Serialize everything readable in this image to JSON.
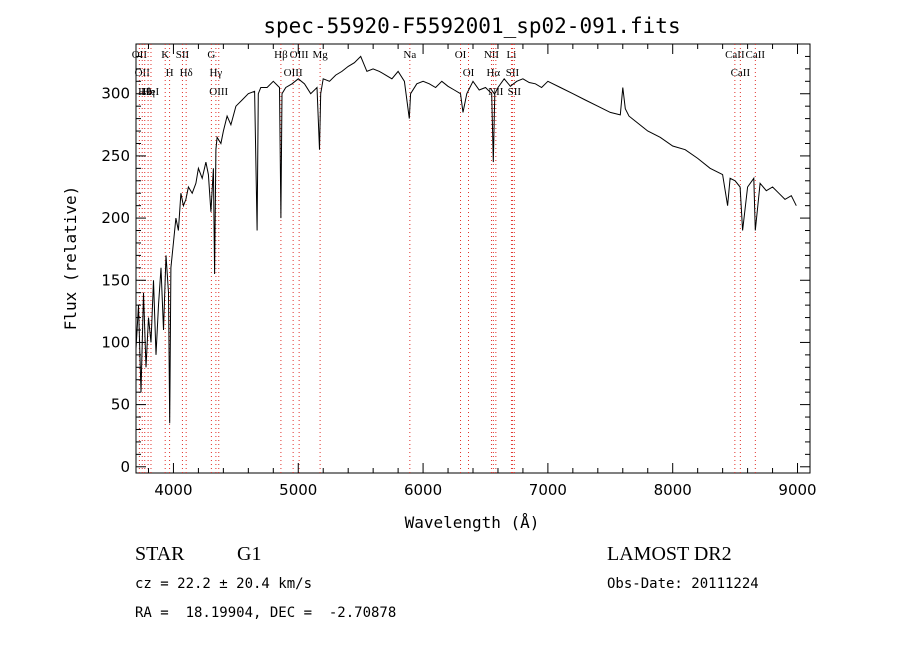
{
  "chart_data": {
    "type": "line",
    "title": "spec-55920-F5592001_sp02-091.fits",
    "xlabel": "Wavelength (Å)",
    "ylabel": "Flux (relative)",
    "xlim": [
      3700,
      9100
    ],
    "ylim": [
      -5,
      340
    ],
    "x_ticks": [
      4000,
      5000,
      6000,
      7000,
      8000,
      9000
    ],
    "y_ticks": [
      0,
      50,
      100,
      150,
      200,
      250,
      300
    ],
    "grid": false,
    "series": [
      {
        "color": "#000000",
        "x": [
          3700,
          3720,
          3740,
          3760,
          3780,
          3800,
          3820,
          3840,
          3860,
          3880,
          3900,
          3920,
          3940,
          3960,
          3970,
          3980,
          4000,
          4020,
          4040,
          4060,
          4080,
          4100,
          4120,
          4150,
          4180,
          4200,
          4230,
          4260,
          4280,
          4300,
          4320,
          4330,
          4340,
          4350,
          4380,
          4400,
          4430,
          4460,
          4500,
          4550,
          4600,
          4650,
          4670,
          4680,
          4700,
          4750,
          4800,
          4850,
          4861,
          4870,
          4900,
          4950,
          5000,
          5050,
          5100,
          5150,
          5170,
          5180,
          5200,
          5250,
          5300,
          5350,
          5400,
          5450,
          5500,
          5550,
          5600,
          5650,
          5700,
          5750,
          5800,
          5850,
          5890,
          5900,
          5950,
          6000,
          6050,
          6100,
          6150,
          6200,
          6250,
          6300,
          6320,
          6350,
          6400,
          6450,
          6500,
          6550,
          6563,
          6575,
          6600,
          6650,
          6700,
          6750,
          6800,
          6850,
          6900,
          6950,
          7000,
          7100,
          7200,
          7300,
          7400,
          7500,
          7580,
          7600,
          7620,
          7650,
          7700,
          7800,
          7900,
          8000,
          8100,
          8200,
          8300,
          8400,
          8440,
          8460,
          8500,
          8540,
          8560,
          8600,
          8650,
          8662,
          8700,
          8750,
          8800,
          8850,
          8900,
          8950,
          8990
        ],
        "y": [
          95,
          130,
          60,
          140,
          80,
          120,
          100,
          150,
          90,
          130,
          160,
          110,
          170,
          140,
          35,
          160,
          180,
          200,
          190,
          220,
          210,
          215,
          225,
          220,
          228,
          240,
          232,
          245,
          235,
          205,
          240,
          155,
          255,
          265,
          260,
          270,
          282,
          275,
          290,
          295,
          300,
          302,
          190,
          300,
          305,
          305,
          310,
          305,
          200,
          300,
          305,
          308,
          312,
          308,
          300,
          305,
          255,
          300,
          312,
          310,
          315,
          318,
          322,
          325,
          330,
          318,
          320,
          318,
          315,
          312,
          318,
          310,
          280,
          300,
          308,
          310,
          308,
          305,
          310,
          306,
          303,
          300,
          285,
          300,
          310,
          303,
          305,
          300,
          245,
          300,
          305,
          312,
          306,
          310,
          312,
          309,
          308,
          305,
          310,
          305,
          300,
          295,
          290,
          285,
          283,
          305,
          288,
          282,
          278,
          270,
          265,
          258,
          255,
          248,
          240,
          235,
          210,
          232,
          230,
          225,
          190,
          225,
          232,
          190,
          228,
          222,
          225,
          220,
          215,
          218,
          210
        ]
      }
    ],
    "spectral_lines": [
      {
        "wavelength": 3727,
        "label": "OII"
      },
      {
        "wavelength": 3750,
        "label": "OII"
      },
      {
        "wavelength": 3770,
        "label": "Hθ"
      },
      {
        "wavelength": 3797,
        "label": "Hη"
      },
      {
        "wavelength": 3820,
        "label": "HeI"
      },
      {
        "wavelength": 3934,
        "label": "K"
      },
      {
        "wavelength": 3969,
        "label": "H"
      },
      {
        "wavelength": 4072,
        "label": "SII"
      },
      {
        "wavelength": 4102,
        "label": "Hδ"
      },
      {
        "wavelength": 4304,
        "label": "G"
      },
      {
        "wavelength": 4340,
        "label": "Hγ"
      },
      {
        "wavelength": 4363,
        "label": "OIII"
      },
      {
        "wavelength": 4861,
        "label": "Hβ"
      },
      {
        "wavelength": 4959,
        "label": "OIII"
      },
      {
        "wavelength": 5007,
        "label": "OIII"
      },
      {
        "wavelength": 5175,
        "label": "Mg"
      },
      {
        "wavelength": 5894,
        "label": "Na"
      },
      {
        "wavelength": 6300,
        "label": "OI"
      },
      {
        "wavelength": 6364,
        "label": "OI"
      },
      {
        "wavelength": 6548,
        "label": "NII"
      },
      {
        "wavelength": 6563,
        "label": "Hα"
      },
      {
        "wavelength": 6583,
        "label": "NII"
      },
      {
        "wavelength": 6708,
        "label": "Li"
      },
      {
        "wavelength": 6716,
        "label": "SII"
      },
      {
        "wavelength": 6731,
        "label": "SII"
      },
      {
        "wavelength": 8498,
        "label": "CaII"
      },
      {
        "wavelength": 8542,
        "label": "CaII"
      },
      {
        "wavelength": 8662,
        "label": "CaII"
      }
    ]
  },
  "info": {
    "class": "STAR",
    "subclass": "G1",
    "survey": "LAMOST DR2",
    "cz": "cz = 22.2 ± 20.4 km/s",
    "obs_date": "Obs-Date: 20111224",
    "radec": "RA =  18.19904, DEC =  -2.70878"
  }
}
